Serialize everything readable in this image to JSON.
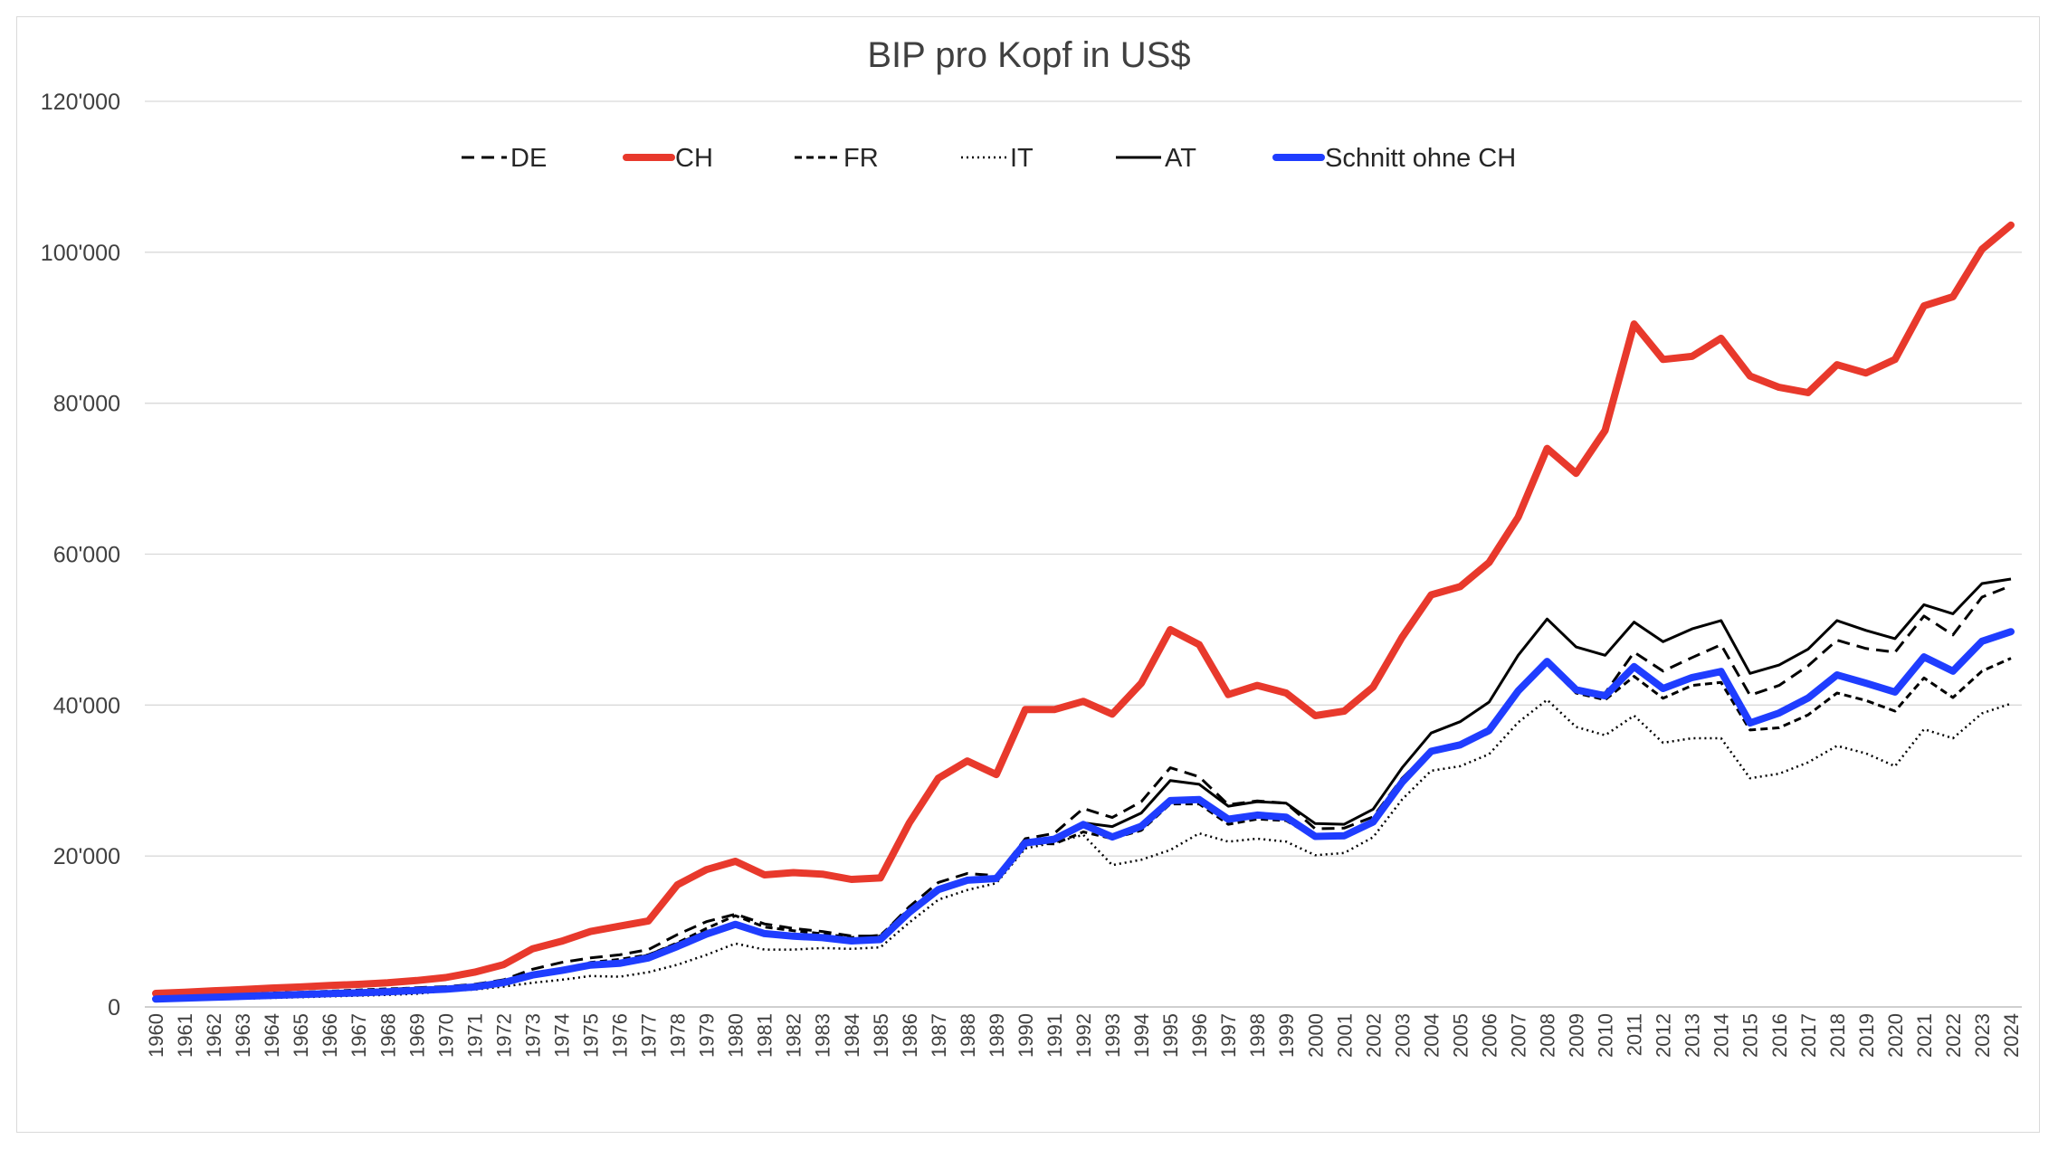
{
  "chart_data": {
    "type": "line",
    "title": "BIP pro Kopf in US$",
    "xlabel": "",
    "ylabel": "",
    "ylim": [
      0,
      120000
    ],
    "y_ticks": [
      0,
      20000,
      40000,
      60000,
      80000,
      100000,
      120000
    ],
    "y_tick_labels": [
      "0",
      "20'000",
      "40'000",
      "60'000",
      "80'000",
      "100'000",
      "120'000"
    ],
    "grid": "horizontal",
    "legend_position": "top",
    "categories": [
      "1960",
      "1961",
      "1962",
      "1963",
      "1964",
      "1965",
      "1966",
      "1967",
      "1968",
      "1969",
      "1970",
      "1971",
      "1972",
      "1973",
      "1974",
      "1975",
      "1976",
      "1977",
      "1978",
      "1979",
      "1980",
      "1981",
      "1982",
      "1983",
      "1984",
      "1985",
      "1986",
      "1987",
      "1988",
      "1989",
      "1990",
      "1991",
      "1992",
      "1993",
      "1994",
      "1995",
      "1996",
      "1997",
      "1998",
      "1999",
      "2000",
      "2001",
      "2002",
      "2003",
      "2004",
      "2005",
      "2006",
      "2007",
      "2008",
      "2009",
      "2010",
      "2011",
      "2012",
      "2013",
      "2014",
      "2015",
      "2016",
      "2017",
      "2018",
      "2019",
      "2020",
      "2021",
      "2022",
      "2023",
      "2024"
    ],
    "series": [
      {
        "name": "DE",
        "color": "#000000",
        "style": "dashed",
        "values": [
          1200,
          1350,
          1500,
          1600,
          1750,
          1900,
          2050,
          2150,
          2300,
          2550,
          2700,
          3000,
          3600,
          5000,
          5900,
          6500,
          6900,
          7600,
          9600,
          11300,
          12300,
          11000,
          10400,
          10000,
          9400,
          9400,
          13300,
          16500,
          17700,
          17400,
          22300,
          23000,
          26300,
          25100,
          27200,
          31700,
          30500,
          26800,
          27300,
          27000,
          23600,
          23700,
          25200,
          30300,
          34100,
          34500,
          36300,
          41600,
          45600,
          41700,
          41600,
          47000,
          44500,
          46300,
          48000,
          41300,
          42600,
          45200,
          48600,
          47500,
          47000,
          51800,
          49300,
          54300,
          55800
        ]
      },
      {
        "name": "CH",
        "color": "#e8392c",
        "style": "solid-thick",
        "values": [
          1800,
          1950,
          2150,
          2300,
          2500,
          2650,
          2850,
          3000,
          3200,
          3500,
          3900,
          4600,
          5600,
          7700,
          8700,
          10000,
          10700,
          11400,
          16200,
          18200,
          19300,
          17500,
          17800,
          17600,
          16900,
          17100,
          24400,
          30300,
          32600,
          30800,
          39400,
          39400,
          40500,
          38800,
          42900,
          50000,
          48000,
          41400,
          42600,
          41600,
          38600,
          39200,
          42400,
          49000,
          54600,
          55700,
          58900,
          64900,
          74000,
          70700,
          76400,
          90500,
          85800,
          86200,
          88600,
          83600,
          82100,
          81400,
          85100,
          84000,
          85800,
          92900,
          94100,
          100400,
          103600
        ]
      },
      {
        "name": "FR",
        "color": "#000000",
        "style": "short-dashed",
        "values": [
          1300,
          1400,
          1500,
          1700,
          1850,
          1950,
          2100,
          2250,
          2400,
          2500,
          2600,
          2800,
          3400,
          4300,
          4800,
          5900,
          6300,
          6900,
          8500,
          10400,
          12100,
          10600,
          10100,
          9700,
          9200,
          9500,
          13000,
          15700,
          17000,
          17000,
          21700,
          21600,
          23200,
          22300,
          23400,
          26900,
          26900,
          24200,
          24900,
          24700,
          22400,
          22400,
          24200,
          29600,
          33800,
          34700,
          36400,
          41600,
          45400,
          41600,
          40700,
          43800,
          40900,
          42600,
          43000,
          36700,
          37000,
          38700,
          41600,
          40600,
          39200,
          43600,
          41000,
          44500,
          46200
        ]
      },
      {
        "name": "IT",
        "color": "#000000",
        "style": "dotted",
        "values": [
          800,
          900,
          1000,
          1100,
          1200,
          1300,
          1400,
          1500,
          1600,
          1750,
          2100,
          2300,
          2700,
          3200,
          3600,
          4100,
          4000,
          4600,
          5600,
          6900,
          8400,
          7600,
          7600,
          7800,
          7700,
          7900,
          11200,
          14200,
          15500,
          16400,
          21000,
          21800,
          22800,
          18800,
          19500,
          20800,
          23000,
          21900,
          22300,
          21900,
          20100,
          20400,
          22500,
          27500,
          31300,
          31900,
          33500,
          37700,
          40700,
          37100,
          36000,
          38600,
          35000,
          35600,
          35600,
          30300,
          30900,
          32400,
          34600,
          33600,
          31900,
          36800,
          35600,
          38900,
          40200
        ]
      },
      {
        "name": "AT",
        "color": "#000000",
        "style": "solid",
        "values": [
          900,
          1000,
          1100,
          1200,
          1300,
          1400,
          1500,
          1600,
          1750,
          1950,
          2100,
          2500,
          3200,
          4400,
          5000,
          5700,
          5900,
          6900,
          8400,
          10000,
          11000,
          9700,
          9400,
          9200,
          8700,
          8900,
          12700,
          15800,
          17000,
          17300,
          21900,
          22500,
          24400,
          23900,
          25700,
          30000,
          29500,
          26600,
          27200,
          27000,
          24300,
          24200,
          26200,
          31700,
          36300,
          37800,
          40400,
          46600,
          51400,
          47700,
          46600,
          51000,
          48400,
          50100,
          51200,
          44200,
          45300,
          47400,
          51200,
          49900,
          48800,
          53300,
          52100,
          56100,
          56700
        ]
      },
      {
        "name": "Schnitt ohne CH",
        "color": "#1f3dff",
        "style": "solid-thick",
        "values": [
          1050,
          1160,
          1280,
          1400,
          1525,
          1640,
          1760,
          1875,
          2010,
          2190,
          2350,
          2650,
          3230,
          4230,
          4830,
          5550,
          5780,
          6500,
          8020,
          9650,
          10950,
          9720,
          9380,
          9180,
          8750,
          8930,
          12550,
          15550,
          16800,
          17020,
          21730,
          22230,
          24180,
          22530,
          23950,
          27350,
          27480,
          24880,
          25430,
          25150,
          22600,
          22680,
          24520,
          29780,
          33880,
          34730,
          36650,
          41880,
          45780,
          42030,
          41230,
          45100,
          42200,
          43650,
          44450,
          37630,
          38950,
          40930,
          44000,
          42900,
          41730,
          46380,
          44500,
          48450,
          49730
        ]
      }
    ]
  }
}
